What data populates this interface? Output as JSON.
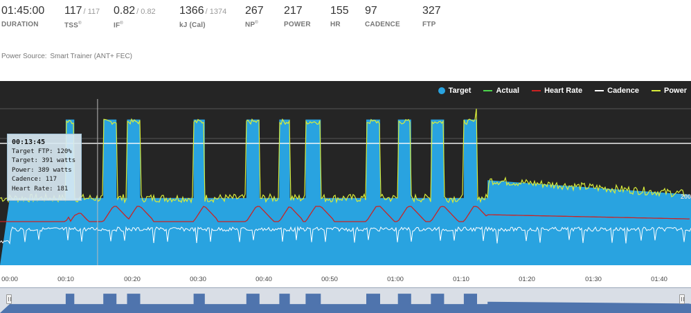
{
  "stats": [
    {
      "id": "duration",
      "value": "01:45:00",
      "max": "",
      "label": "DURATION",
      "sup": ""
    },
    {
      "id": "tss",
      "value": "117",
      "max": "117",
      "label": "TSS",
      "sup": "®"
    },
    {
      "id": "if",
      "value": "0.82",
      "max": "0.82",
      "label": "IF",
      "sup": "®"
    },
    {
      "id": "kj",
      "value": "1366",
      "max": "1374",
      "label": "kJ (Cal)",
      "sup": ""
    },
    {
      "id": "np",
      "value": "267",
      "max": "",
      "label": "NP",
      "sup": "®"
    },
    {
      "id": "power",
      "value": "217",
      "max": "",
      "label": "POWER",
      "sup": ""
    },
    {
      "id": "hr",
      "value": "155",
      "max": "",
      "label": "HR",
      "sup": ""
    },
    {
      "id": "cadence",
      "value": "97",
      "max": "",
      "label": "CADENCE",
      "sup": ""
    },
    {
      "id": "ftp",
      "value": "327",
      "max": "",
      "label": "FTP",
      "sup": ""
    }
  ],
  "power_source": {
    "label": "Power Source:",
    "value": "Smart Trainer (ANT+ FEC)"
  },
  "legend": [
    {
      "label": "Target",
      "color": "#29a3e0",
      "shape": "dot"
    },
    {
      "label": "Actual",
      "color": "#4cd64c",
      "shape": "line"
    },
    {
      "label": "Heart Rate",
      "color": "#cc2222",
      "shape": "line"
    },
    {
      "label": "Cadence",
      "color": "#ffffff",
      "shape": "line"
    },
    {
      "label": "Power",
      "color": "#d8ec3a",
      "shape": "line"
    }
  ],
  "tooltip": {
    "time": "00:13:45",
    "target_ftp": "Target FTP: 120%",
    "target": "Target: 391 watts",
    "power": "Power: 389 watts",
    "cadence": "Cadence: 117",
    "heart_rate": "Heart Rate: 181"
  },
  "y_axis_label": "200",
  "x_ticks": [
    "00:00",
    "00:10",
    "00:20",
    "00:30",
    "00:40",
    "00:50",
    "01:00",
    "01:10",
    "01:20",
    "01:30",
    "01:40"
  ],
  "chart_data": {
    "type": "area",
    "xlabel": "",
    "ylabel": "",
    "x_range_minutes": [
      0,
      105
    ],
    "y_range_watts": [
      0,
      420
    ],
    "interval_blocks_minutes": [
      [
        8.5,
        9.2
      ],
      [
        9.2,
        9.8
      ],
      [
        14.2,
        16.2
      ],
      [
        17.8,
        19.8
      ],
      [
        27.9,
        29.6
      ],
      [
        35.9,
        37.9
      ],
      [
        40.9,
        42.5
      ],
      [
        44.9,
        47.2
      ],
      [
        54.1,
        56.2
      ],
      [
        58.9,
        60.9
      ],
      [
        63.9,
        65.9
      ],
      [
        68.9,
        70.9
      ]
    ],
    "series": [
      {
        "name": "Target",
        "peak_watts": 391,
        "recovery_watts": 180,
        "endurance_start_watts": 228,
        "endurance_end_watts": 190
      },
      {
        "name": "Heart Rate",
        "peak_bpm": 181
      },
      {
        "name": "Cadence",
        "peak_rpm": 117
      }
    ],
    "cursor_minutes": 13.75
  },
  "colors": {
    "chart_bg": "#252525",
    "target_fill": "#29a3e0",
    "actual": "#4cd64c",
    "hr": "#cc2222",
    "cadence": "#ffffff",
    "power": "#d8ec3a",
    "nav_fill": "#4f74ad"
  }
}
